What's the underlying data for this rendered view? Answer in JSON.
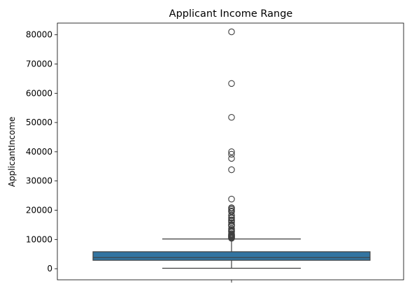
{
  "chart_data": {
    "type": "boxplot",
    "title": "Applicant Income Range",
    "xlabel": "",
    "ylabel": "ApplicantIncome",
    "ylim": [
      -3800,
      84000
    ],
    "yticks": [
      0,
      10000,
      20000,
      30000,
      40000,
      50000,
      60000,
      70000,
      80000
    ],
    "ytick_labels": [
      "0",
      "10000",
      "20000",
      "30000",
      "40000",
      "50000",
      "60000",
      "70000",
      "80000"
    ],
    "grid": false,
    "legend": "none",
    "box": {
      "whisker_low": 150,
      "q1": 2877,
      "median": 3812,
      "q3": 5795,
      "whisker_high": 10171,
      "outliers": [
        81000,
        63337,
        51763,
        39999,
        39147,
        37719,
        33846,
        23803,
        20833,
        20667,
        20233,
        19730,
        19484,
        18333,
        18165,
        17500,
        17263,
        16692,
        16667,
        16250,
        15759,
        15000,
        14999,
        14880,
        14866,
        14583,
        13650,
        13262,
        12876,
        12841,
        12500,
        12000,
        11757,
        11500,
        11417,
        11250,
        11146,
        11000,
        10833,
        10750,
        10513,
        10408
      ]
    },
    "colors": {
      "box_fill": "#3274a1",
      "lines": "#3f3f3f"
    }
  }
}
